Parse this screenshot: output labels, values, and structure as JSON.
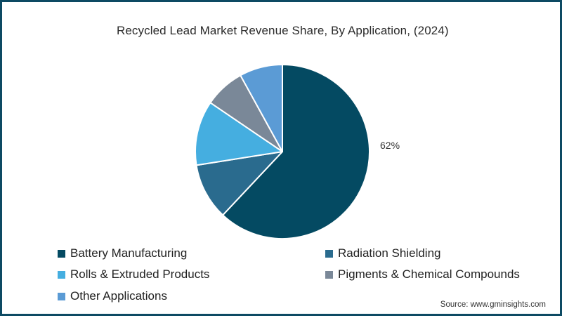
{
  "chart_data": {
    "type": "pie",
    "title": "Recycled Lead Market Revenue Share, By Application, (2024)",
    "categories": [
      "Battery Manufacturing",
      "Radiation Shielding",
      "Rolls & Extruded Products",
      "Pigments & Chemical Compounds",
      "Other Applications"
    ],
    "values": [
      62,
      10.5,
      12,
      7.5,
      8
    ],
    "colors": [
      "#044a62",
      "#2a6b8e",
      "#45aee0",
      "#7a8898",
      "#5b9bd5"
    ],
    "data_labels": [
      "62%",
      "",
      "",
      "",
      ""
    ],
    "start_angle_deg": 0,
    "direction": "clockwise",
    "legend_position": "bottom"
  },
  "header": {
    "title": "Recycled Lead Market Revenue Share, By Application, (2024)"
  },
  "labels": {
    "battery_pct": "62%"
  },
  "legend": {
    "items": [
      {
        "label": "Battery Manufacturing",
        "color": "#044a62"
      },
      {
        "label": "Radiation Shielding",
        "color": "#2a6b8e"
      },
      {
        "label": "Rolls & Extruded Products",
        "color": "#45aee0"
      },
      {
        "label": "Pigments & Chemical Compounds",
        "color": "#7a8898"
      },
      {
        "label": "Other Applications",
        "color": "#5b9bd5"
      }
    ]
  },
  "footer": {
    "source": "Source: www.gminsights.com"
  },
  "theme": {
    "border": "#0d4a63"
  }
}
